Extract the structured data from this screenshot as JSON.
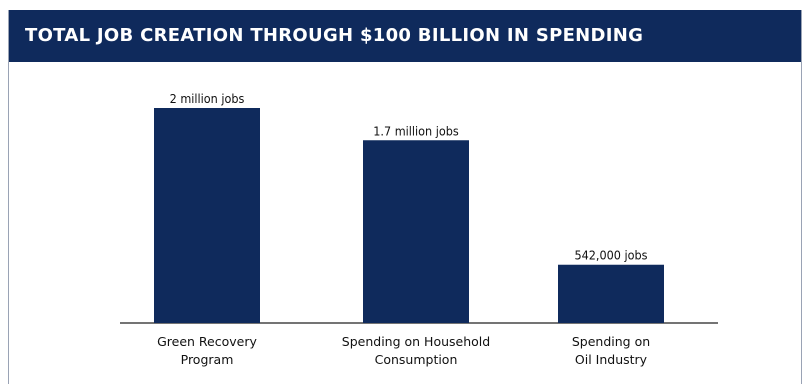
{
  "header": {
    "title": "TOTAL JOB CREATION THROUGH $100 BILLION IN SPENDING"
  },
  "colors": {
    "header_bg": "#0f2a5c",
    "bar": "#0f2a5c",
    "header_text": "#ffffff"
  },
  "chart_data": {
    "type": "bar",
    "title": "TOTAL JOB CREATION THROUGH $100 BILLION IN SPENDING",
    "categories": [
      [
        "Green Recovery",
        "Program"
      ],
      [
        "Spending on Household",
        "Consumption"
      ],
      [
        "Spending on",
        "Oil Industry"
      ]
    ],
    "values": [
      2000000,
      1700000,
      542000
    ],
    "data_labels": [
      "2 million jobs",
      "1.7 million jobs",
      "542,000 jobs"
    ],
    "ylim": [
      0,
      2000000
    ],
    "grid": false,
    "legend": "none",
    "xlabel": "",
    "ylabel": ""
  }
}
